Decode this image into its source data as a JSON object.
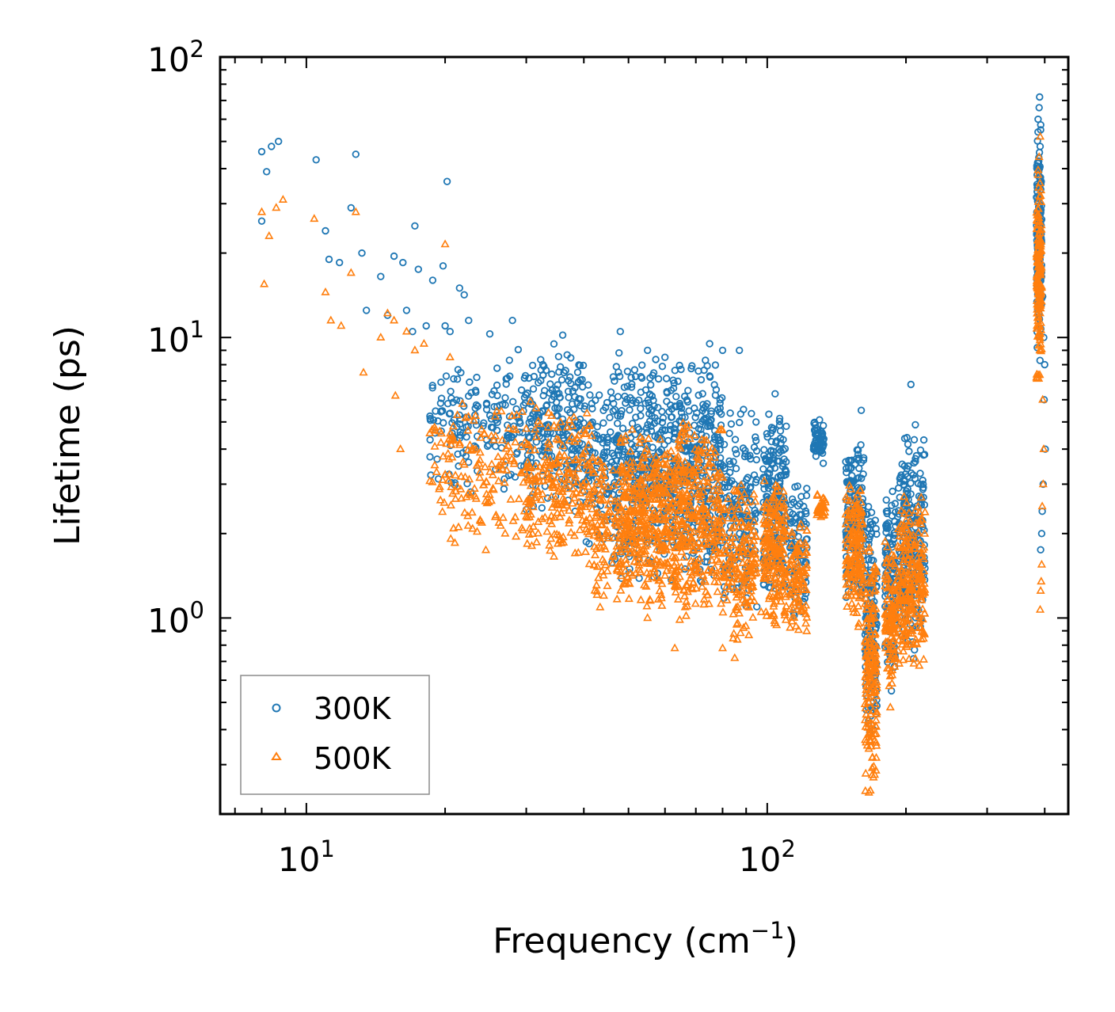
{
  "chart_data": {
    "type": "scatter",
    "xscale": "log",
    "yscale": "log",
    "xlim": [
      6.5,
      450
    ],
    "ylim": [
      0.2,
      100
    ],
    "xlabel": "Frequency (cm",
    "xlabel_sup": "−1",
    "xlabel_end": ")",
    "ylabel": "Lifetime (ps)",
    "x_ticks": [
      {
        "value": 10,
        "base": "10",
        "exp": "1"
      },
      {
        "value": 100,
        "base": "10",
        "exp": "2"
      }
    ],
    "y_ticks": [
      {
        "value": 1,
        "base": "10",
        "exp": "0"
      },
      {
        "value": 10,
        "base": "10",
        "exp": "1"
      },
      {
        "value": 100,
        "base": "10",
        "exp": "2"
      }
    ],
    "legend": {
      "location": "lower-left",
      "entries": [
        "300K",
        "500K"
      ]
    },
    "series": [
      {
        "name": "300K",
        "marker": "circle",
        "color": "#1f77b4",
        "points": [
          [
            8.0,
            46
          ],
          [
            8.2,
            39
          ],
          [
            8.4,
            48
          ],
          [
            8.7,
            50
          ],
          [
            8.0,
            26
          ],
          [
            10.5,
            43
          ],
          [
            12.8,
            45
          ],
          [
            11.0,
            24
          ],
          [
            12.5,
            29
          ],
          [
            11.2,
            19
          ],
          [
            11.8,
            18.5
          ],
          [
            13.2,
            20
          ],
          [
            14.5,
            16.5
          ],
          [
            15.5,
            19.5
          ],
          [
            16.2,
            18.5
          ],
          [
            17.2,
            25
          ],
          [
            17.5,
            17.5
          ],
          [
            18.8,
            16
          ],
          [
            20.2,
            36
          ],
          [
            19.8,
            18
          ],
          [
            21.5,
            15
          ],
          [
            22.0,
            14.2
          ],
          [
            13.5,
            12.5
          ],
          [
            15.0,
            12
          ],
          [
            16.5,
            12.5
          ],
          [
            17.0,
            10.5
          ],
          [
            18.2,
            11
          ],
          [
            20.0,
            11
          ],
          [
            20.5,
            10.5
          ],
          [
            22.5,
            11.5
          ],
          [
            25.0,
            10.3
          ],
          [
            28.0,
            11.5
          ],
          [
            36.0,
            10.2
          ],
          [
            48.0,
            10.5
          ],
          [
            55.0,
            9
          ],
          [
            60.0,
            8.5
          ],
          [
            75.0,
            9.5
          ],
          [
            80.0,
            9
          ],
          [
            87.0,
            9
          ],
          [
            104.0,
            6.3
          ],
          [
            160.0,
            5.5
          ],
          [
            205.0,
            6.8
          ],
          [
            390.0,
            72
          ],
          [
            389.0,
            66
          ],
          [
            387.0,
            60
          ],
          [
            392.0,
            55
          ],
          [
            391.0,
            48
          ],
          [
            386.0,
            42
          ],
          [
            393.0,
            36
          ],
          [
            388.0,
            30
          ],
          [
            396.0,
            14
          ],
          [
            398.0,
            10
          ],
          [
            400.0,
            8
          ],
          [
            399.0,
            6
          ],
          [
            401.0,
            4
          ],
          [
            397.0,
            3
          ],
          [
            395.0,
            2.4
          ],
          [
            394.0,
            2.0
          ],
          [
            392.0,
            1.75
          ],
          [
            186.0,
            0.55
          ],
          [
            170.0,
            0.4
          ]
        ]
      },
      {
        "name": "500K",
        "marker": "triangle",
        "color": "#ff7f0e",
        "points": [
          [
            8.0,
            28
          ],
          [
            8.3,
            23
          ],
          [
            8.6,
            29
          ],
          [
            8.9,
            31
          ],
          [
            8.1,
            15.5
          ],
          [
            10.4,
            26.5
          ],
          [
            11.0,
            14.5
          ],
          [
            12.8,
            28
          ],
          [
            11.3,
            11.5
          ],
          [
            11.9,
            11
          ],
          [
            12.5,
            17
          ],
          [
            13.3,
            7.5
          ],
          [
            14.5,
            10
          ],
          [
            15.0,
            12.2
          ],
          [
            15.5,
            11.5
          ],
          [
            15.6,
            6.2
          ],
          [
            16.0,
            4.0
          ],
          [
            16.5,
            10.5
          ],
          [
            17.2,
            9
          ],
          [
            18.0,
            9.5
          ],
          [
            20.0,
            21.5
          ],
          [
            20.5,
            8.5
          ],
          [
            21.8,
            5.8
          ],
          [
            24.0,
            4.7
          ],
          [
            27.0,
            2.0
          ],
          [
            28.5,
            1.95
          ],
          [
            30.0,
            2.3
          ],
          [
            45.0,
            1.3
          ],
          [
            55.0,
            1.0
          ],
          [
            63.0,
            0.78
          ],
          [
            80.0,
            0.78
          ],
          [
            85.0,
            0.72
          ],
          [
            97.0,
            1.05
          ],
          [
            110.0,
            1.1
          ],
          [
            185.0,
            0.48
          ],
          [
            170.0,
            0.27
          ],
          [
            391.0,
            52
          ],
          [
            389.0,
            44
          ],
          [
            387.0,
            38
          ],
          [
            392.0,
            32
          ],
          [
            386.0,
            26
          ],
          [
            393.0,
            22
          ],
          [
            388.0,
            18
          ],
          [
            390.0,
            15
          ],
          [
            384.0,
            7.2
          ],
          [
            396.0,
            6
          ],
          [
            398.0,
            4
          ],
          [
            397.0,
            3
          ],
          [
            395.0,
            2.5
          ],
          [
            394.0,
            1.55
          ],
          [
            393.0,
            1.35
          ],
          [
            392.0,
            1.25
          ],
          [
            391.0,
            1.07
          ]
        ]
      }
    ],
    "dense_regions": [
      {
        "series": "300K",
        "xmin": 18.5,
        "xmax": 30,
        "ymin": 2.6,
        "ymax": 9.5,
        "count": 160
      },
      {
        "series": "300K",
        "xmin": 30,
        "xmax": 40,
        "ymin": 2.3,
        "ymax": 9.8,
        "count": 220
      },
      {
        "series": "300K",
        "xmin": 40,
        "xmax": 46,
        "ymin": 1.7,
        "ymax": 8.0,
        "count": 90
      },
      {
        "series": "300K",
        "xmin": 46,
        "xmax": 60,
        "ymin": 1.3,
        "ymax": 9.2,
        "count": 320
      },
      {
        "series": "300K",
        "xmin": 60,
        "xmax": 80,
        "ymin": 1.2,
        "ymax": 9.0,
        "count": 360
      },
      {
        "series": "300K",
        "xmin": 80,
        "xmax": 95,
        "ymin": 1.0,
        "ymax": 6.0,
        "count": 160
      },
      {
        "series": "300K",
        "xmin": 98,
        "xmax": 110,
        "ymin": 1.1,
        "ymax": 6.0,
        "count": 200
      },
      {
        "series": "300K",
        "xmin": 112,
        "xmax": 122,
        "ymin": 0.9,
        "ymax": 3.4,
        "count": 90
      },
      {
        "series": "300K",
        "xmin": 126,
        "xmax": 133,
        "ymin": 3.5,
        "ymax": 5.2,
        "count": 60
      },
      {
        "series": "300K",
        "xmin": 148,
        "xmax": 162,
        "ymin": 1.0,
        "ymax": 5.0,
        "count": 150
      },
      {
        "series": "300K",
        "xmin": 163,
        "xmax": 173,
        "ymin": 0.35,
        "ymax": 2.6,
        "count": 150
      },
      {
        "series": "300K",
        "xmin": 180,
        "xmax": 190,
        "ymin": 0.6,
        "ymax": 3.2,
        "count": 110
      },
      {
        "series": "300K",
        "xmin": 192,
        "xmax": 220,
        "ymin": 0.7,
        "ymax": 5.2,
        "count": 240
      },
      {
        "series": "300K",
        "xmin": 384,
        "xmax": 394,
        "ymin": 8,
        "ymax": 60,
        "count": 140
      },
      {
        "series": "500K",
        "xmin": 18.5,
        "xmax": 30,
        "ymin": 1.7,
        "ymax": 6.0,
        "count": 160
      },
      {
        "series": "500K",
        "xmin": 30,
        "xmax": 42,
        "ymin": 1.5,
        "ymax": 6.0,
        "count": 240
      },
      {
        "series": "500K",
        "xmin": 42,
        "xmax": 48,
        "ymin": 1.0,
        "ymax": 4.0,
        "count": 100
      },
      {
        "series": "500K",
        "xmin": 48,
        "xmax": 60,
        "ymin": 1.0,
        "ymax": 5.0,
        "count": 320
      },
      {
        "series": "500K",
        "xmin": 60,
        "xmax": 80,
        "ymin": 0.9,
        "ymax": 5.5,
        "count": 400
      },
      {
        "series": "500K",
        "xmin": 80,
        "xmax": 95,
        "ymin": 0.8,
        "ymax": 3.5,
        "count": 170
      },
      {
        "series": "500K",
        "xmin": 98,
        "xmax": 110,
        "ymin": 0.9,
        "ymax": 3.4,
        "count": 200
      },
      {
        "series": "500K",
        "xmin": 112,
        "xmax": 122,
        "ymin": 0.85,
        "ymax": 2.2,
        "count": 90
      },
      {
        "series": "500K",
        "xmin": 128,
        "xmax": 134,
        "ymin": 2.2,
        "ymax": 2.8,
        "count": 40
      },
      {
        "series": "500K",
        "xmin": 148,
        "xmax": 162,
        "ymin": 0.9,
        "ymax": 3.2,
        "count": 150
      },
      {
        "series": "500K",
        "xmin": 163,
        "xmax": 173,
        "ymin": 0.22,
        "ymax": 2.0,
        "count": 170
      },
      {
        "series": "500K",
        "xmin": 180,
        "xmax": 190,
        "ymin": 0.55,
        "ymax": 2.0,
        "count": 110
      },
      {
        "series": "500K",
        "xmin": 192,
        "xmax": 220,
        "ymin": 0.6,
        "ymax": 2.8,
        "count": 240
      },
      {
        "series": "500K",
        "xmin": 384,
        "xmax": 394,
        "ymin": 6,
        "ymax": 45,
        "count": 140
      }
    ]
  }
}
